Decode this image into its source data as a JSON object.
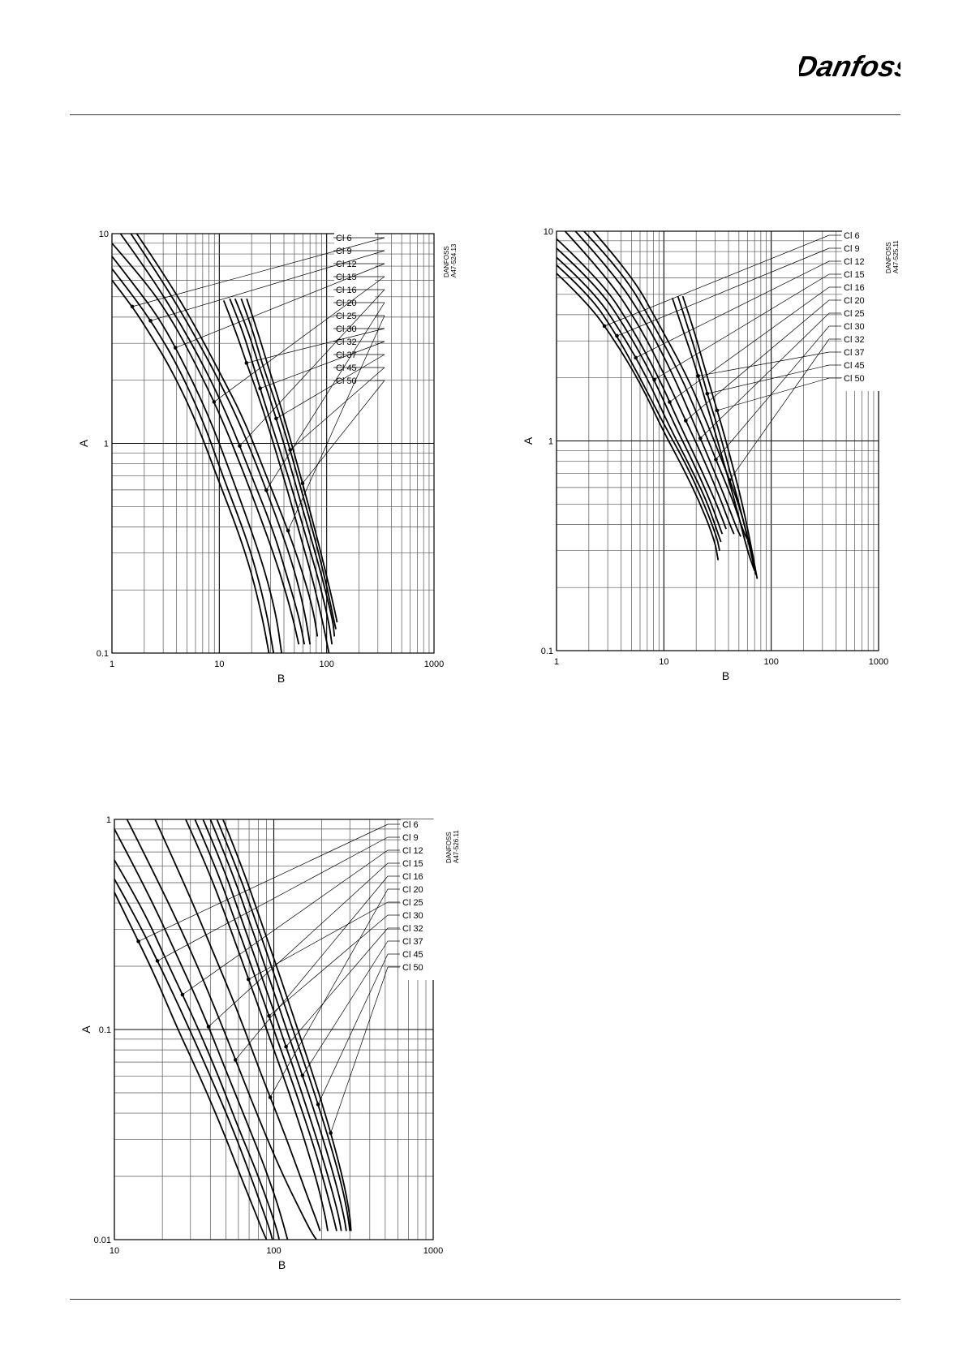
{
  "brand": {
    "name": "Danfoss",
    "color": "#e2000f"
  },
  "chart_data": [
    {
      "type": "line",
      "id": "chart1",
      "code": "DANFOSS A47-524.13",
      "xlabel": "B",
      "ylabel": "A",
      "x_scale": "log",
      "y_scale": "log",
      "xlim": [
        1,
        1000
      ],
      "ylim": [
        0.1,
        10
      ],
      "x_ticks": [
        "1",
        "10",
        "100",
        "1000"
      ],
      "y_ticks": [
        "0.1",
        "1",
        "10"
      ],
      "series": [
        {
          "name": "Cl 6",
          "x": [
            1.0,
            1.5,
            2.2,
            3.5,
            6,
            10,
            15,
            20,
            25,
            29
          ],
          "y": [
            6.0,
            4.6,
            3.4,
            2.3,
            1.3,
            0.65,
            0.38,
            0.24,
            0.15,
            0.1
          ]
        },
        {
          "name": "Cl 9",
          "x": [
            1.0,
            1.6,
            2.5,
            4,
            7,
            11,
            17,
            22,
            28,
            32
          ],
          "y": [
            6.8,
            5.0,
            3.6,
            2.4,
            1.3,
            0.68,
            0.38,
            0.25,
            0.15,
            0.1
          ]
        },
        {
          "name": "Cl 12",
          "x": [
            1.0,
            1.7,
            2.8,
            4.5,
            8,
            13,
            20,
            27,
            34,
            38
          ],
          "y": [
            7.8,
            5.5,
            3.9,
            2.5,
            1.35,
            0.7,
            0.38,
            0.24,
            0.15,
            0.1
          ]
        },
        {
          "name": "Cl 15",
          "x": [
            1.0,
            2,
            3.5,
            6,
            10,
            17,
            27,
            37,
            48,
            55
          ],
          "y": [
            9.0,
            6.0,
            4.0,
            2.4,
            1.4,
            0.72,
            0.38,
            0.24,
            0.15,
            0.11
          ]
        },
        {
          "name": "Cl 16",
          "x": [
            1.2,
            2.2,
            4,
            7,
            12,
            20,
            32,
            42,
            55,
            62
          ],
          "y": [
            10,
            6.5,
            4.0,
            2.4,
            1.35,
            0.7,
            0.38,
            0.24,
            0.15,
            0.11
          ]
        },
        {
          "name": "Cl 20",
          "x": [
            1.5,
            2.8,
            5,
            9,
            15,
            25,
            38,
            50,
            62,
            70
          ],
          "y": [
            10,
            6.2,
            3.8,
            2.2,
            1.3,
            0.68,
            0.38,
            0.25,
            0.16,
            0.11
          ]
        },
        {
          "name": "Cl 25",
          "x": [
            1.7,
            3,
            5.5,
            10,
            17,
            28,
            45,
            60,
            75,
            82
          ],
          "y": [
            10,
            6.5,
            3.9,
            2.2,
            1.3,
            0.68,
            0.37,
            0.24,
            0.16,
            0.12
          ]
        },
        {
          "name": "Cl 30",
          "x": [
            11,
            14,
            18,
            24,
            32,
            43,
            58,
            75,
            92,
            105
          ],
          "y": [
            4.8,
            3.5,
            2.4,
            1.6,
            1.0,
            0.6,
            0.35,
            0.22,
            0.14,
            0.1
          ]
        },
        {
          "name": "Cl 32",
          "x": [
            12.5,
            16,
            20,
            26,
            35,
            48,
            65,
            85,
            105,
            112
          ],
          "y": [
            4.9,
            3.6,
            2.5,
            1.6,
            1.0,
            0.6,
            0.35,
            0.22,
            0.14,
            0.11
          ]
        },
        {
          "name": "Cl 37",
          "x": [
            14,
            18,
            23,
            30,
            40,
            53,
            72,
            95,
            115,
            118
          ],
          "y": [
            4.9,
            3.6,
            2.4,
            1.6,
            1.0,
            0.6,
            0.35,
            0.21,
            0.14,
            0.12
          ]
        },
        {
          "name": "Cl 45",
          "x": [
            16,
            20,
            25,
            33,
            44,
            58,
            78,
            100,
            118,
            122
          ],
          "y": [
            4.9,
            3.6,
            2.4,
            1.6,
            1.0,
            0.6,
            0.35,
            0.21,
            0.14,
            0.13
          ]
        },
        {
          "name": "Cl 50",
          "x": [
            18,
            22,
            28,
            36,
            47,
            62,
            82,
            105,
            122,
            125
          ],
          "y": [
            4.9,
            3.6,
            2.4,
            1.6,
            1.0,
            0.6,
            0.35,
            0.21,
            0.15,
            0.14
          ]
        }
      ]
    },
    {
      "type": "line",
      "id": "chart2",
      "code": "DANFOSS A47-525.11",
      "xlabel": "B",
      "ylabel": "A",
      "x_scale": "log",
      "y_scale": "log",
      "xlim": [
        1,
        1000
      ],
      "ylim": [
        0.1,
        10
      ],
      "x_ticks": [
        "1",
        "10",
        "100",
        "1000"
      ],
      "y_ticks": [
        "0.1",
        "1",
        "10"
      ],
      "series": [
        {
          "name": "Cl 6",
          "x": [
            1.0,
            2,
            3.5,
            6,
            10,
            15,
            22,
            30,
            32
          ],
          "y": [
            6.3,
            4.5,
            3.0,
            1.9,
            1.1,
            0.75,
            0.5,
            0.33,
            0.27
          ]
        },
        {
          "name": "Cl 9",
          "x": [
            1.0,
            2,
            3.5,
            6,
            10,
            16,
            23,
            31,
            33
          ],
          "y": [
            6.9,
            5.0,
            3.3,
            2.0,
            1.2,
            0.78,
            0.52,
            0.35,
            0.3
          ]
        },
        {
          "name": "Cl 12",
          "x": [
            1.0,
            2.2,
            4,
            7,
            11,
            17,
            25,
            32,
            34
          ],
          "y": [
            7.5,
            5.2,
            3.3,
            2.0,
            1.2,
            0.78,
            0.52,
            0.36,
            0.33
          ]
        },
        {
          "name": "Cl 15",
          "x": [
            1.0,
            2.4,
            4.5,
            8,
            12.5,
            19,
            27,
            33,
            35
          ],
          "y": [
            8.3,
            5.5,
            3.4,
            2.0,
            1.2,
            0.78,
            0.52,
            0.39,
            0.36
          ]
        },
        {
          "name": "Cl 16",
          "x": [
            1.0,
            2.6,
            5,
            9,
            14,
            21,
            30,
            36,
            38
          ],
          "y": [
            9.2,
            5.8,
            3.5,
            2.0,
            1.2,
            0.78,
            0.52,
            0.41,
            0.38
          ]
        },
        {
          "name": "Cl 20",
          "x": [
            1.2,
            3,
            6,
            10,
            16,
            24,
            34,
            42,
            45
          ],
          "y": [
            10,
            6.0,
            3.5,
            2.1,
            1.25,
            0.8,
            0.52,
            0.39,
            0.36
          ]
        },
        {
          "name": "Cl 25",
          "x": [
            1.5,
            3.5,
            7,
            12,
            18,
            27,
            38,
            48,
            52
          ],
          "y": [
            10,
            6.2,
            3.6,
            2.1,
            1.3,
            0.8,
            0.52,
            0.38,
            0.35
          ]
        },
        {
          "name": "Cl 30",
          "x": [
            1.8,
            4,
            8,
            14,
            21,
            31,
            44,
            55,
            60
          ],
          "y": [
            10,
            6.5,
            3.6,
            2.1,
            1.3,
            0.8,
            0.52,
            0.37,
            0.34
          ]
        },
        {
          "name": "Cl 32",
          "x": [
            2.2,
            5,
            9,
            16,
            24,
            35,
            50,
            62,
            68
          ],
          "y": [
            10,
            6.2,
            3.6,
            2.1,
            1.3,
            0.8,
            0.5,
            0.33,
            0.28
          ]
        },
        {
          "name": "Cl 37",
          "x": [
            12,
            15,
            19,
            24,
            30,
            38,
            48,
            60,
            70
          ],
          "y": [
            4.8,
            3.4,
            2.4,
            1.6,
            1.1,
            0.72,
            0.47,
            0.3,
            0.24
          ]
        },
        {
          "name": "Cl 45",
          "x": [
            13.5,
            17,
            21,
            26,
            33,
            41,
            52,
            64,
            72
          ],
          "y": [
            4.9,
            3.4,
            2.4,
            1.6,
            1.1,
            0.72,
            0.47,
            0.3,
            0.23
          ]
        },
        {
          "name": "Cl 50",
          "x": [
            15,
            19,
            23,
            29,
            36,
            45,
            56,
            67,
            74
          ],
          "y": [
            4.9,
            3.4,
            2.4,
            1.6,
            1.1,
            0.72,
            0.46,
            0.29,
            0.22
          ]
        }
      ]
    },
    {
      "type": "line",
      "id": "chart3",
      "code": "DANFOSS A47-526.11",
      "xlabel": "B",
      "ylabel": "A",
      "x_scale": "log",
      "y_scale": "log",
      "xlim": [
        10,
        1000
      ],
      "ylim": [
        0.01,
        1
      ],
      "x_ticks": [
        "10",
        "100",
        "1000"
      ],
      "y_ticks": [
        "0.01",
        "0.1",
        "1"
      ],
      "series": [
        {
          "name": "Cl 6",
          "x": [
            10,
            13,
            18,
            25,
            35,
            48,
            62,
            75,
            85,
            90
          ],
          "y": [
            0.45,
            0.3,
            0.18,
            0.1,
            0.058,
            0.033,
            0.02,
            0.014,
            0.011,
            0.01
          ]
        },
        {
          "name": "Cl 9",
          "x": [
            10,
            14,
            20,
            28,
            40,
            55,
            70,
            85,
            95,
            98
          ],
          "y": [
            0.52,
            0.33,
            0.19,
            0.11,
            0.06,
            0.034,
            0.021,
            0.014,
            0.011,
            0.01
          ]
        },
        {
          "name": "Cl 12",
          "x": [
            10,
            15,
            22,
            32,
            45,
            60,
            78,
            95,
            105,
            108
          ],
          "y": [
            0.64,
            0.38,
            0.2,
            0.11,
            0.06,
            0.034,
            0.021,
            0.014,
            0.011,
            0.01
          ]
        },
        {
          "name": "Cl 15",
          "x": [
            10,
            16,
            25,
            36,
            50,
            68,
            88,
            105,
            118,
            122
          ],
          "y": [
            0.9,
            0.46,
            0.22,
            0.12,
            0.064,
            0.036,
            0.022,
            0.015,
            0.011,
            0.01
          ]
        },
        {
          "name": "Cl 16",
          "x": [
            12,
            19,
            30,
            44,
            62,
            85,
            115,
            145,
            170,
            185
          ],
          "y": [
            1,
            0.5,
            0.24,
            0.12,
            0.062,
            0.034,
            0.02,
            0.014,
            0.011,
            0.01
          ]
        },
        {
          "name": "Cl 20",
          "x": [
            18,
            28,
            42,
            60,
            82,
            110,
            140,
            168,
            188,
            195
          ],
          "y": [
            1,
            0.48,
            0.23,
            0.12,
            0.063,
            0.036,
            0.022,
            0.015,
            0.012,
            0.011
          ]
        },
        {
          "name": "Cl 25",
          "x": [
            28,
            38,
            52,
            70,
            95,
            125,
            160,
            190,
            210,
            218
          ],
          "y": [
            1,
            0.6,
            0.32,
            0.17,
            0.09,
            0.05,
            0.028,
            0.018,
            0.013,
            0.011
          ]
        },
        {
          "name": "Cl 30",
          "x": [
            32,
            43,
            58,
            78,
            105,
            138,
            178,
            210,
            235,
            248
          ],
          "y": [
            1,
            0.6,
            0.32,
            0.17,
            0.09,
            0.05,
            0.028,
            0.018,
            0.013,
            0.011
          ]
        },
        {
          "name": "Cl 32",
          "x": [
            36,
            48,
            64,
            86,
            115,
            150,
            192,
            228,
            255,
            265
          ],
          "y": [
            1,
            0.6,
            0.32,
            0.17,
            0.09,
            0.05,
            0.028,
            0.018,
            0.013,
            0.011
          ]
        },
        {
          "name": "Cl 37",
          "x": [
            40,
            53,
            71,
            95,
            126,
            165,
            210,
            248,
            275,
            285
          ],
          "y": [
            1,
            0.6,
            0.32,
            0.17,
            0.09,
            0.05,
            0.028,
            0.018,
            0.013,
            0.011
          ]
        },
        {
          "name": "Cl 45",
          "x": [
            44,
            58,
            78,
            104,
            138,
            180,
            228,
            268,
            292,
            300
          ],
          "y": [
            1,
            0.6,
            0.32,
            0.17,
            0.09,
            0.05,
            0.028,
            0.018,
            0.013,
            0.011
          ]
        },
        {
          "name": "Cl 50",
          "x": [
            48,
            63,
            84,
            112,
            148,
            192,
            240,
            278,
            300,
            305
          ],
          "y": [
            1,
            0.6,
            0.32,
            0.17,
            0.09,
            0.05,
            0.028,
            0.018,
            0.013,
            0.011
          ]
        }
      ]
    }
  ]
}
